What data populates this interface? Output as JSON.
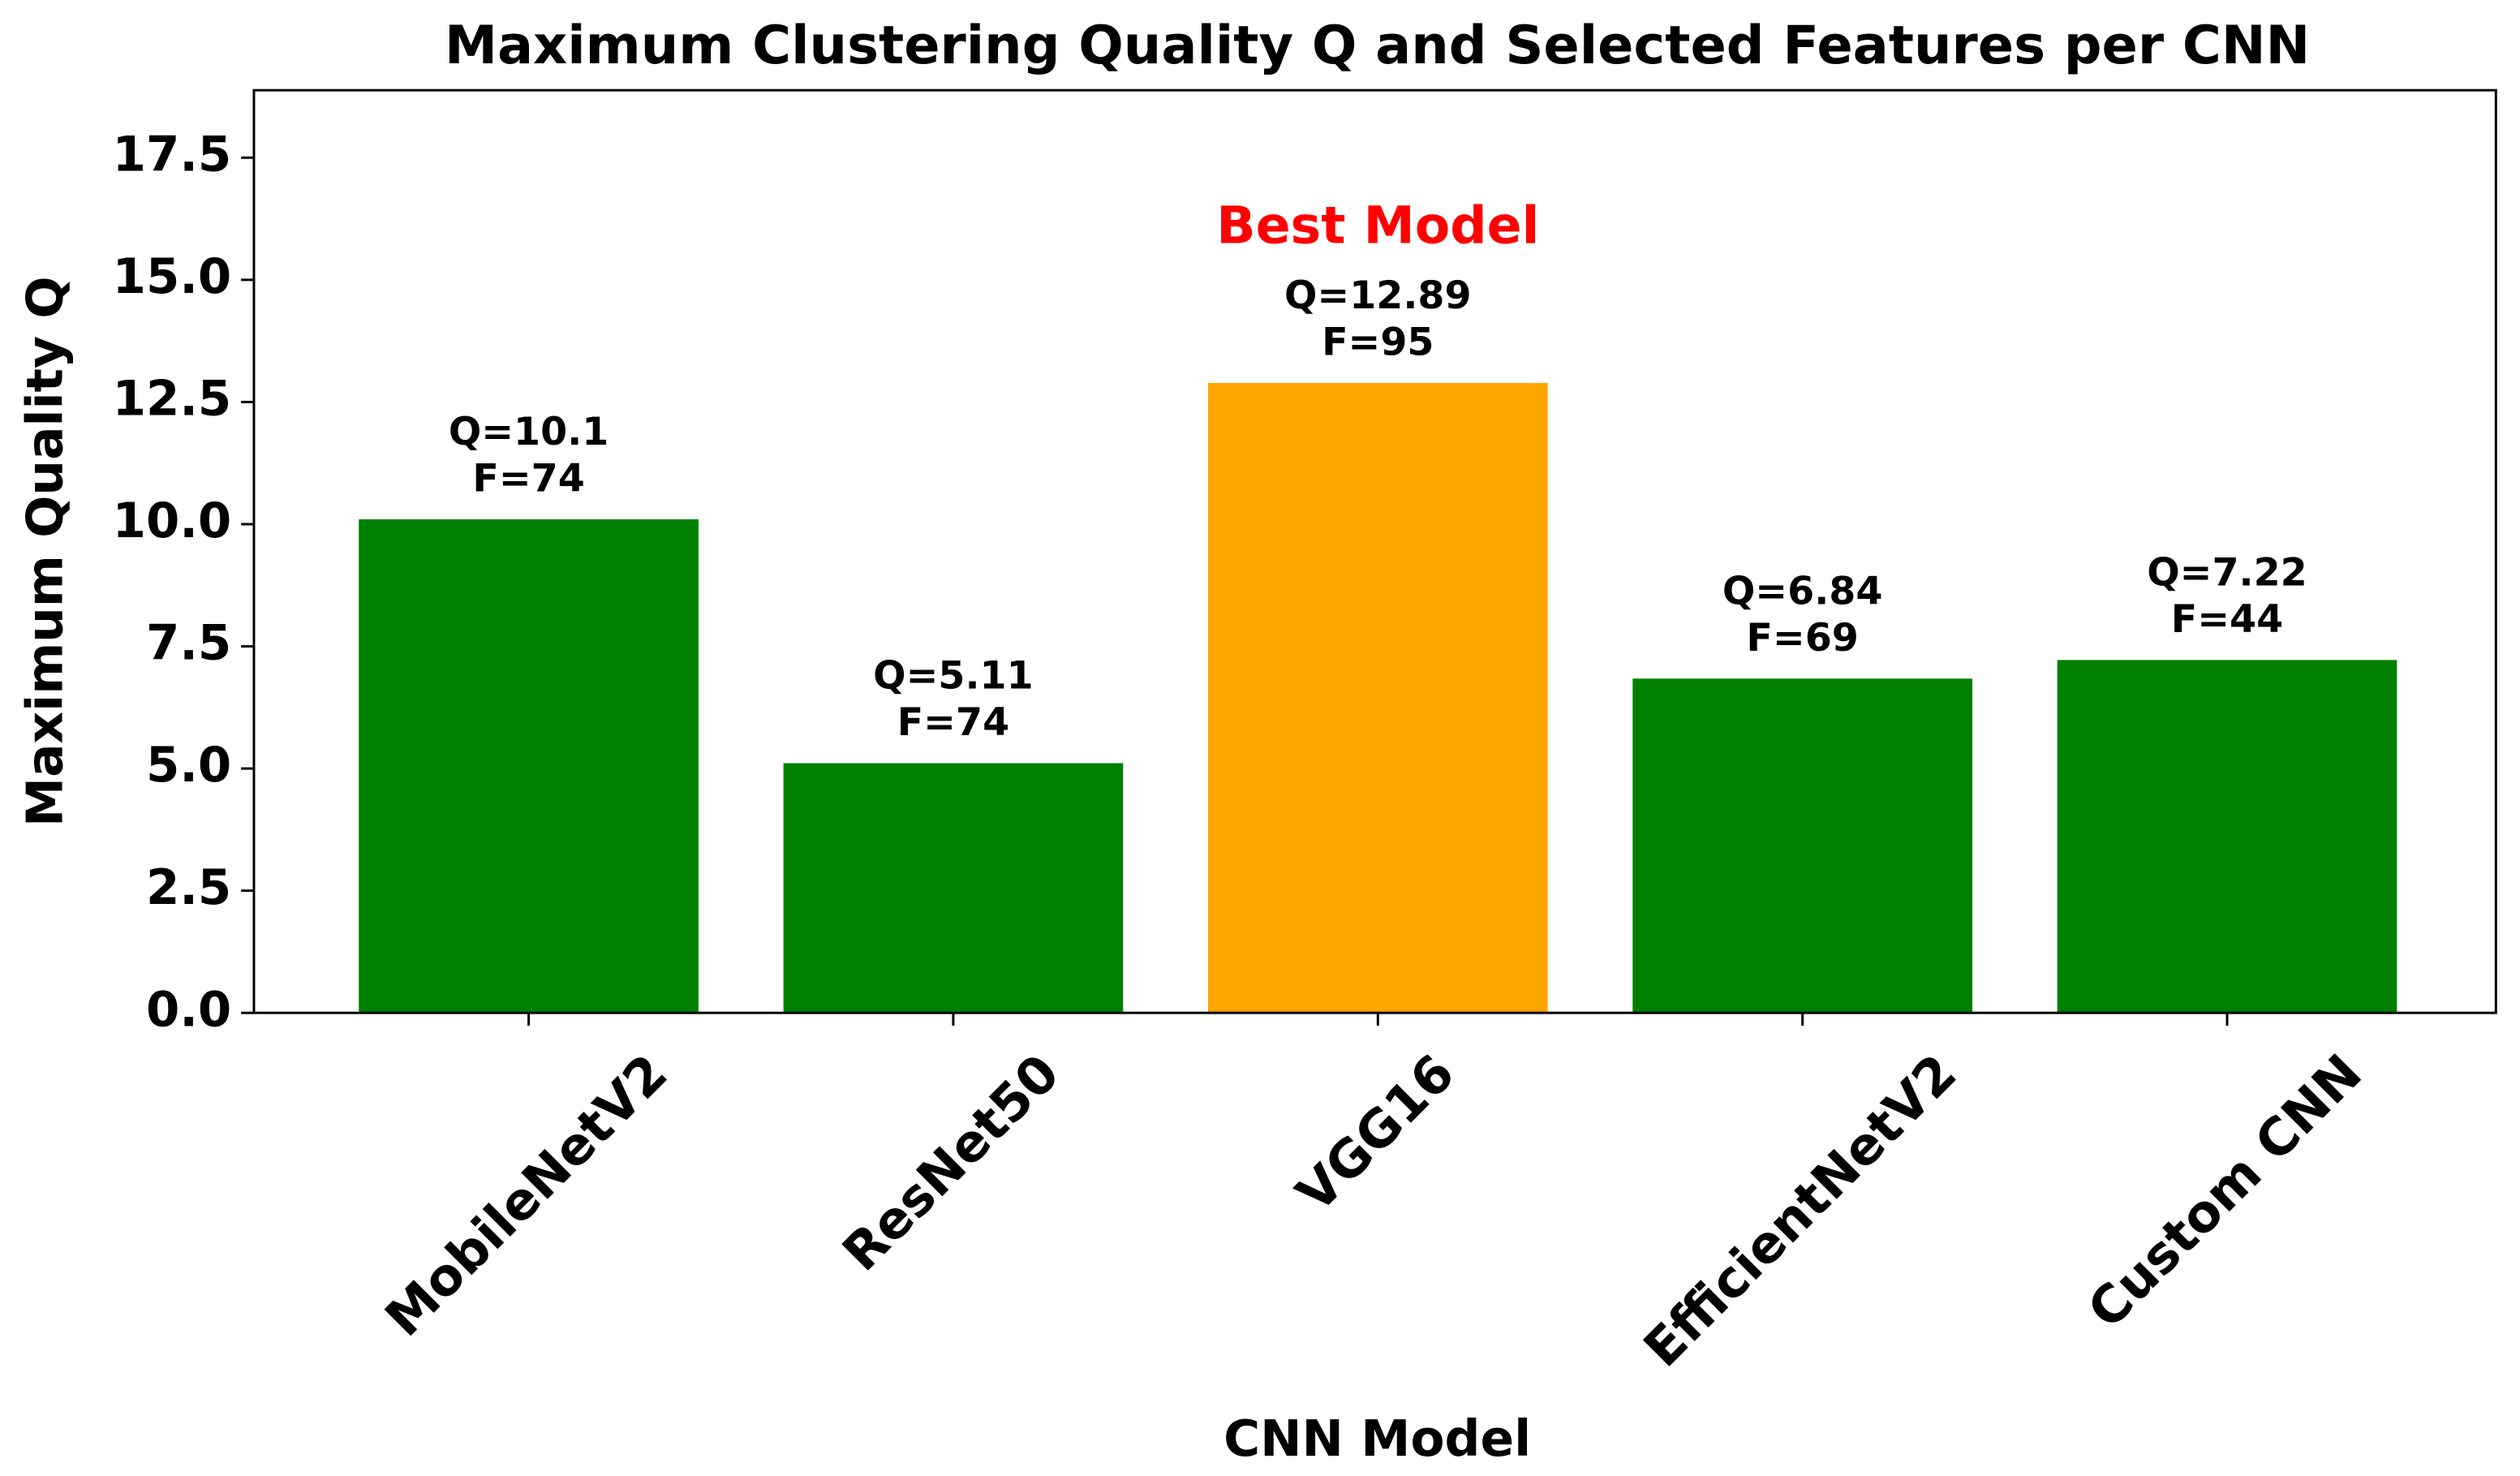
{
  "chart_data": {
    "type": "bar",
    "title": "Maximum Clustering Quality Q and Selected Features per CNN",
    "x_label": "CNN Model",
    "y_label": "Maximum Quality Q",
    "categories": [
      "MobileNetV2",
      "ResNet50",
      "VGG16",
      "EfficientNetV2",
      "Custom CNN"
    ],
    "values": [
      10.1,
      5.11,
      12.89,
      6.84,
      7.22
    ],
    "value_labels": [
      "Q=10.1",
      "Q=5.11",
      "Q=12.89",
      "Q=6.84",
      "Q=7.22"
    ],
    "features": [
      74,
      74,
      95,
      69,
      44
    ],
    "feature_labels": [
      "F=74",
      "F=74",
      "F=95",
      "F=69",
      "F=44"
    ],
    "colors": [
      "#008000",
      "#008000",
      "#ffa500",
      "#008000",
      "#008000"
    ],
    "annotation": "Best Model",
    "annotation_color": "#ff0000",
    "ylim": [
      0,
      18.88
    ],
    "yticks": [
      {
        "value": 0,
        "label": "0.0"
      },
      2.5,
      {
        "value": 5,
        "label": "5.0"
      },
      7.5,
      {
        "value": 10,
        "label": "10.0"
      },
      12.5,
      {
        "value": 15,
        "label": "15.0"
      },
      17.5
    ],
    "grid": false
  }
}
